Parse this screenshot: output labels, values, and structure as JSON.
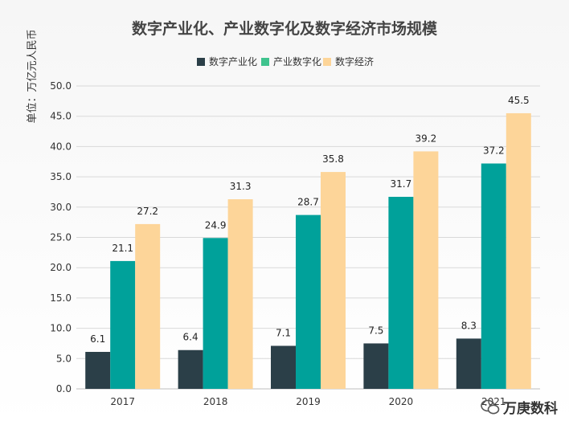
{
  "chart_data": {
    "type": "bar",
    "title": "数字产业化、产业数字化及数字经济市场规模",
    "ylabel": "单位：万亿元人民币",
    "xlabel": "",
    "categories": [
      "2017",
      "2018",
      "2019",
      "2020",
      "2021"
    ],
    "series": [
      {
        "name": "数字产业化",
        "color": "#2b3f48",
        "values": [
          6.1,
          6.4,
          7.1,
          7.5,
          8.3
        ]
      },
      {
        "name": "产业数字化",
        "color": "#00a19a",
        "values": [
          21.1,
          24.9,
          28.7,
          31.7,
          37.2
        ]
      },
      {
        "name": "数字经济",
        "color": "#fdd599",
        "values": [
          27.2,
          31.3,
          35.8,
          39.2,
          45.5
        ]
      }
    ],
    "legend_colors": [
      "#2b3f48",
      "#3fc38e",
      "#fdd599"
    ],
    "ylim": [
      0,
      50
    ],
    "yticks": [
      "0.0",
      "5.0",
      "10.0",
      "15.0",
      "20.0",
      "25.0",
      "30.0",
      "35.0",
      "40.0",
      "45.0",
      "50.0"
    ],
    "legend_position": "top-center",
    "grid": true
  },
  "watermark": {
    "text": "万庚数科",
    "icon": "wechat-icon"
  }
}
